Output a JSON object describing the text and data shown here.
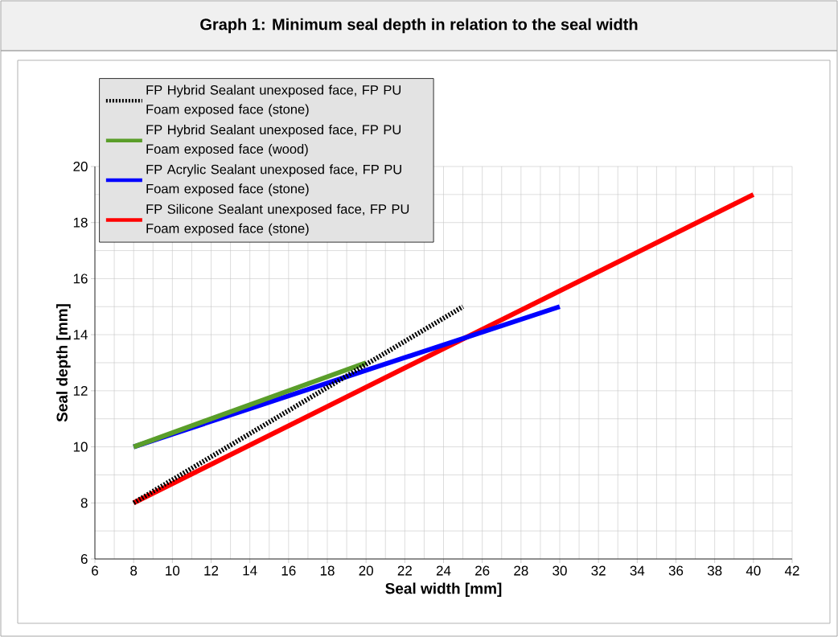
{
  "chart_data": {
    "type": "line",
    "title": "Graph 1: Minimum seal depth in relation to the seal width",
    "xlabel": "Seal width [mm]",
    "ylabel": "Seal depth [mm]",
    "xlim": [
      6,
      42
    ],
    "ylim": [
      6,
      20
    ],
    "xticks": [
      6,
      8,
      10,
      12,
      14,
      16,
      18,
      20,
      22,
      24,
      26,
      28,
      30,
      32,
      34,
      36,
      38,
      40,
      42
    ],
    "yticks": [
      6,
      8,
      10,
      12,
      14,
      16,
      18,
      20
    ],
    "grid": true,
    "legend": "top left",
    "marker": "none",
    "series": [
      {
        "name": "FP Hybrid Sealant unexposed face, FP PU Foam exposed face (stone)",
        "color": "#000000",
        "line_style": "dotted",
        "x": [
          8,
          25
        ],
        "values": [
          8,
          15
        ]
      },
      {
        "name": "FP Hybrid Sealant unexposed face, FP PU Foam exposed face (wood)",
        "color": "#5a9e2a",
        "line_style": "solid",
        "x": [
          8,
          20
        ],
        "values": [
          10,
          13
        ]
      },
      {
        "name": "FP Acrylic Sealant unexposed face, FP PU Foam exposed face (stone)",
        "color": "#0000ff",
        "line_style": "solid",
        "x": [
          8,
          30
        ],
        "values": [
          10,
          15
        ]
      },
      {
        "name": "FP Silicone Sealant unexposed face, FP PU Foam exposed face (stone)",
        "color": "#ff0000",
        "line_style": "solid",
        "x": [
          8,
          40
        ],
        "values": [
          8,
          19
        ]
      }
    ]
  }
}
